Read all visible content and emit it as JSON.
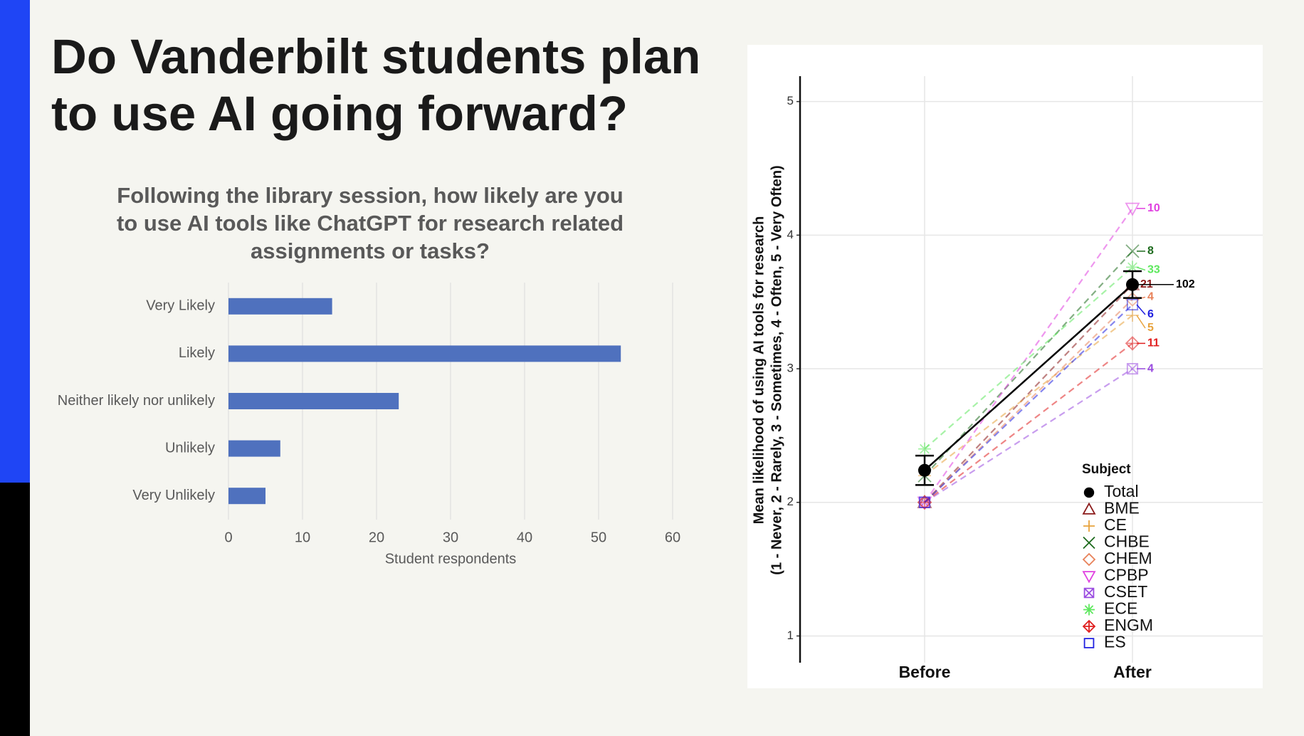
{
  "title": "Do Vanderbilt students plan to use AI going forward?",
  "chart_data": [
    {
      "type": "barh",
      "title": "Following the library session, how likely are you to use AI tools like ChatGPT for research related assignments or tasks?",
      "xlabel": "Student respondents",
      "categories": [
        "Very Likely",
        "Likely",
        "Neither likely nor unlikely",
        "Unlikely",
        "Very Unlikely"
      ],
      "values": [
        14,
        53,
        23,
        7,
        5
      ],
      "color": "#4f71be",
      "xlim": [
        0,
        60
      ],
      "xticks": [
        0,
        10,
        20,
        30,
        40,
        50,
        60
      ],
      "grid": true
    },
    {
      "type": "line",
      "ylabel": [
        "Mean likelihood of using AI tools for research",
        "(1 - Never, 2 - Rarely, 3 - Sometimes, 4 - Often, 5 - Very Often)"
      ],
      "categories": [
        "Before",
        "After"
      ],
      "legend_title": "Subject",
      "ylim": [
        0.8,
        5.19
      ],
      "yticks": [
        1,
        2,
        3,
        4,
        5
      ],
      "grid": true,
      "series": [
        {
          "name": "Total",
          "color": "#000000",
          "marker": "circle",
          "values": [
            2.24,
            3.63
          ],
          "error": [
            0.11,
            0.1
          ],
          "n": 102
        },
        {
          "name": "BME",
          "color": "#8b1a1a",
          "marker": "triangle",
          "values": [
            2.0,
            3.63
          ],
          "n": 21
        },
        {
          "name": "CE",
          "color": "#e8a33d",
          "marker": "plus",
          "values": [
            2.2,
            3.4
          ],
          "n": 5
        },
        {
          "name": "CHBE",
          "color": "#1e6b1e",
          "marker": "cross",
          "values": [
            2.2,
            3.88
          ],
          "n": 8
        },
        {
          "name": "CHEM",
          "color": "#e8825a",
          "marker": "diamond",
          "values": [
            2.0,
            3.52
          ],
          "n": 4
        },
        {
          "name": "CPBP",
          "color": "#e040e0",
          "marker": "triangle-down",
          "values": [
            2.0,
            4.2
          ],
          "n": 10
        },
        {
          "name": "CSET",
          "color": "#9a4ce0",
          "marker": "square-x",
          "values": [
            2.0,
            3.0
          ],
          "n": 4
        },
        {
          "name": "ECE",
          "color": "#5ee85e",
          "marker": "star",
          "values": [
            2.4,
            3.76
          ],
          "n": 33
        },
        {
          "name": "ENGM",
          "color": "#e02020",
          "marker": "diamond-plus",
          "values": [
            2.0,
            3.19
          ],
          "n": 11
        },
        {
          "name": "ES",
          "color": "#2020e0",
          "marker": "square",
          "values": [
            2.0,
            3.48
          ],
          "n": 6
        }
      ]
    }
  ]
}
